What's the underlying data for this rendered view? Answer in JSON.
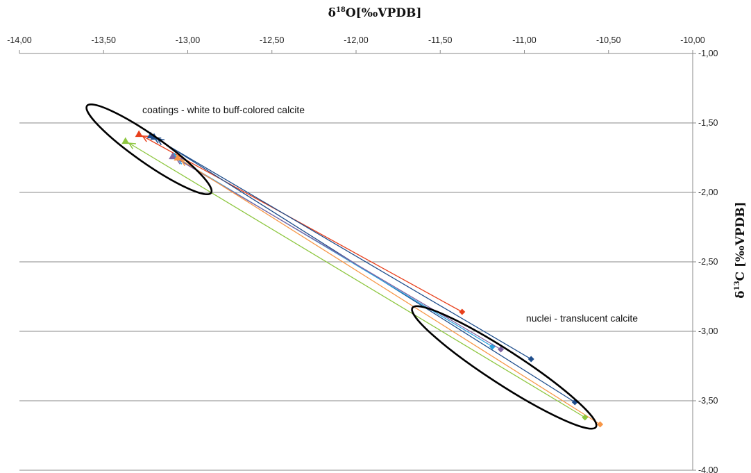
{
  "chart_data": {
    "type": "scatter",
    "xlabel": {
      "pre": "δ",
      "sup": "18",
      "post": "O[‰VPDB]"
    },
    "ylabel": {
      "pre": "δ",
      "sup": "13",
      "post": "C [‰VPDB]"
    },
    "xlim": [
      -14.0,
      -10.0
    ],
    "ylim": [
      -4.0,
      -1.0
    ],
    "x_axis_position": "top",
    "y_axis_position": "right",
    "x_ticks": [
      -14.0,
      -13.5,
      -13.0,
      -12.5,
      -12.0,
      -11.5,
      -11.0,
      -10.5,
      -10.0
    ],
    "x_tick_labels": [
      "-14,00",
      "-13,50",
      "-13,00",
      "-12,50",
      "-12,00",
      "-11,50",
      "-11,00",
      "-10,50",
      "-10,00"
    ],
    "y_ticks": [
      -1.0,
      -1.5,
      -2.0,
      -2.5,
      -3.0,
      -3.5,
      -4.0
    ],
    "y_tick_labels": [
      "-1,00",
      "-1,50",
      "-2,00",
      "-2,50",
      "-3,00",
      "-3,50",
      "-4,00"
    ],
    "grid": "horizontal",
    "series": [
      {
        "color": "#e8401c",
        "nucleus": {
          "x": -11.37,
          "y": -2.86
        },
        "coating": {
          "x": -13.29,
          "y": -1.58
        }
      },
      {
        "color": "#1f4e8c",
        "nucleus": {
          "x": -10.96,
          "y": -3.2
        },
        "coating": {
          "x": -13.22,
          "y": -1.59
        }
      },
      {
        "color": "#1f4e8c",
        "nucleus": {
          "x": -10.7,
          "y": -3.51
        },
        "coating": {
          "x": -13.2,
          "y": -1.6
        }
      },
      {
        "color": "#29a3df",
        "nucleus": {
          "x": -11.19,
          "y": -3.11
        },
        "coating": {
          "x": -13.08,
          "y": -1.74
        }
      },
      {
        "color": "#8064a2",
        "nucleus": {
          "x": -11.14,
          "y": -3.13
        },
        "coating": {
          "x": -13.09,
          "y": -1.74
        }
      },
      {
        "color": "#f79646",
        "nucleus": {
          "x": -10.55,
          "y": -3.67
        },
        "coating": {
          "x": -13.06,
          "y": -1.75
        }
      },
      {
        "color": "#8dc63f",
        "nucleus": {
          "x": -10.64,
          "y": -3.62
        },
        "coating": {
          "x": -13.37,
          "y": -1.63
        }
      }
    ],
    "annotations": [
      {
        "text": "coatings - white to buff-colored calcite",
        "anchor": {
          "x": -13.27,
          "y": -1.43
        }
      },
      {
        "text": "nuclei - translucent calcite",
        "anchor": {
          "x": -10.99,
          "y": -2.93
        }
      }
    ],
    "ellipses": [
      {
        "center": {
          "x": -13.23,
          "y": -1.69
        },
        "rx": -0.15,
        "ry": -0.1
      },
      {
        "center": {
          "x": -11.12,
          "y": -3.26
        },
        "rx": -0.65,
        "ry": -0.2
      }
    ]
  }
}
